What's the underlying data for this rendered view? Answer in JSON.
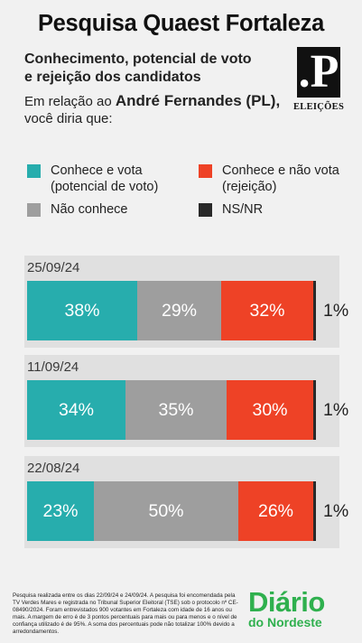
{
  "header": {
    "title": "Pesquisa Quaest Fortaleza",
    "subtitle_line1": "Conhecimento, potencial de voto",
    "subtitle_line2": "e rejeição dos candidatos",
    "question_prefix": "Em relação ao ",
    "candidate": "André Fernandes (PL),",
    "question_suffix": "você diria que:"
  },
  "logo": {
    "letter": ".P",
    "caption": "ELEIÇÕES"
  },
  "legend": {
    "vote_line1": "Conhece e vota",
    "vote_line2": "(potencial de voto)",
    "reject_line1": "Conhece e não vota",
    "reject_line2": "(rejeição)",
    "unknown": "Não conhece",
    "nsnr": "NS/NR"
  },
  "colors": {
    "vote": "#27adad",
    "unknown": "#9e9e9e",
    "reject": "#ee4226",
    "nsnr": "#2a2a2a",
    "brand": "#2fb04e"
  },
  "chart_data": {
    "type": "bar",
    "stacked": true,
    "orientation": "horizontal",
    "unit": "%",
    "categories": [
      "25/09/24",
      "11/09/24",
      "22/08/24"
    ],
    "series": [
      {
        "name": "Conhece e vota (potencial de voto)",
        "values": [
          38,
          34,
          23
        ]
      },
      {
        "name": "Não conhece",
        "values": [
          29,
          35,
          50
        ]
      },
      {
        "name": "Conhece e não vota (rejeição)",
        "values": [
          32,
          30,
          26
        ]
      },
      {
        "name": "NS/NR",
        "values": [
          1,
          1,
          1
        ]
      }
    ],
    "labels": [
      [
        "38%",
        "29%",
        "32%",
        "1%"
      ],
      [
        "34%",
        "35%",
        "30%",
        "1%"
      ],
      [
        "23%",
        "50%",
        "26%",
        "1%"
      ]
    ]
  },
  "footer": {
    "note": "Pesquisa realizada entre os dias 22/09/24 e 24/09/24. A pesquisa foi encomendada pela TV Verdes Mares e registrada no Tribunal Superior Eleitoral (TSE) sob o protocolo nº CE-08490/2024. Foram entrevistados 900 votantes em Fortaleza com idade de 16 anos ou mais. A margem de erro é de 3 pontos percentuais para mais ou para menos e o nível de confiança utilizado é de 95%. A soma dos percentuais pode não totalizar 100% devido a arredondamentos.",
    "brand_top": "Diário",
    "brand_bottom": "do Nordeste"
  }
}
